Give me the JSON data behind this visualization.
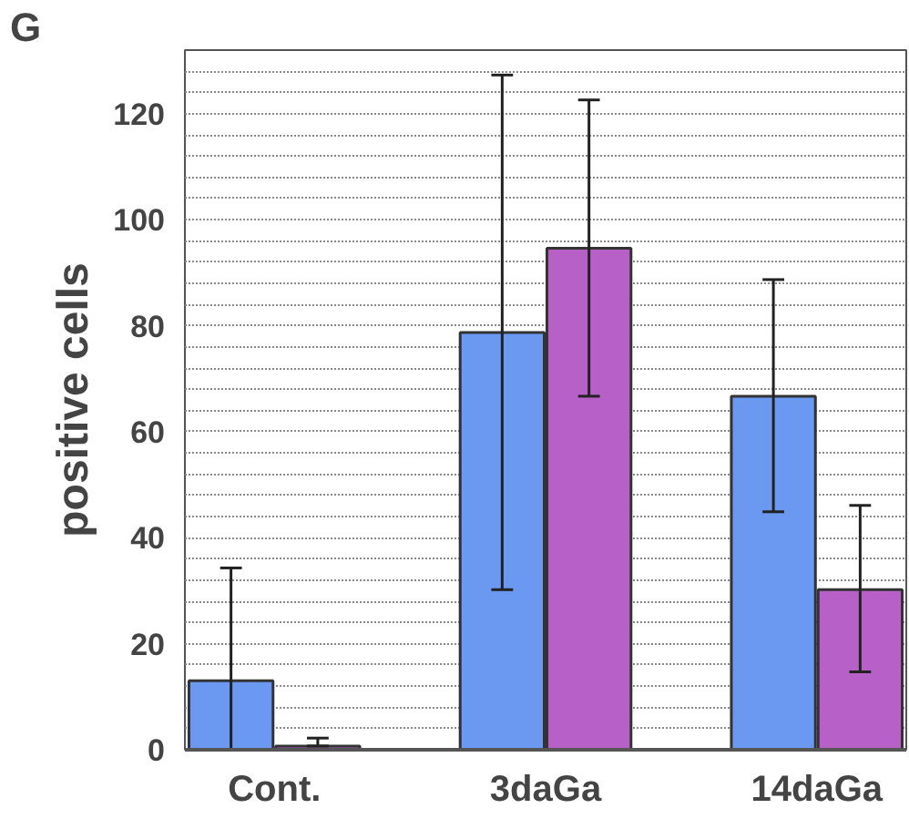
{
  "chart_data": {
    "type": "bar",
    "ylabel": "positive cells",
    "categories": [
      "Cont.",
      "3daGa",
      "14daGa"
    ],
    "series": [
      {
        "color": "#6b98f0",
        "values": [
          13,
          78.7,
          66.7
        ],
        "errors": [
          [
            0,
            34.3
          ],
          [
            30.2,
            127.3
          ],
          [
            44.9,
            88.7
          ]
        ]
      },
      {
        "color": "#b760c8",
        "values": [
          0.7,
          94.6,
          30.2
        ],
        "errors": [
          [
            0.7,
            2.2
          ],
          [
            66.7,
            122.6
          ],
          [
            14.7,
            46.1
          ]
        ]
      }
    ],
    "ylim": [
      0,
      132
    ],
    "yticks": [
      0,
      {
        "value": 4,
        "label": null
      },
      {
        "value": 8,
        "label": null
      },
      {
        "value": 12,
        "label": null
      },
      {
        "value": 16,
        "label": null
      },
      20,
      {
        "value": 24,
        "label": null
      },
      {
        "value": 28,
        "label": null
      },
      {
        "value": 32,
        "label": null
      },
      {
        "value": 36,
        "label": null
      },
      40,
      {
        "value": 44,
        "label": null
      },
      {
        "value": 48,
        "label": null
      },
      {
        "value": 52,
        "label": null
      },
      {
        "value": 56,
        "label": null
      },
      60,
      {
        "value": 64,
        "label": null
      },
      {
        "value": 68,
        "label": null
      },
      {
        "value": 72,
        "label": null
      },
      {
        "value": 76,
        "label": null
      },
      80,
      {
        "value": 84,
        "label": null
      },
      {
        "value": 88,
        "label": null
      },
      {
        "value": 92,
        "label": null
      },
      {
        "value": 96,
        "label": null
      },
      100,
      {
        "value": 104,
        "label": null
      },
      {
        "value": 108,
        "label": null
      },
      {
        "value": 112,
        "label": null
      },
      {
        "value": 116,
        "label": null
      },
      120,
      {
        "value": 124,
        "label": null
      },
      {
        "value": 128,
        "label": null
      }
    ],
    "grid": "y",
    "annotations": [
      "G"
    ]
  }
}
